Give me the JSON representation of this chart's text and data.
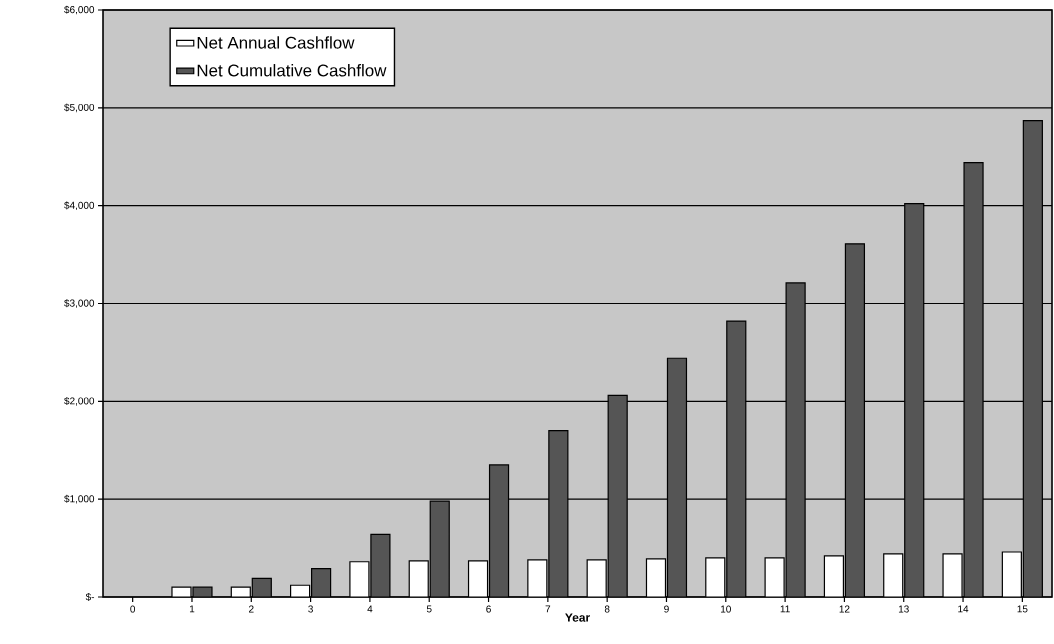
{
  "chart_data": {
    "type": "bar",
    "xlabel": "Year",
    "categories": [
      "0",
      "1",
      "2",
      "3",
      "4",
      "5",
      "6",
      "7",
      "8",
      "9",
      "10",
      "11",
      "12",
      "13",
      "14",
      "15"
    ],
    "series": [
      {
        "name": "Net Annual Cashflow",
        "color": "#ffffff",
        "values": [
          null,
          100,
          100,
          120,
          360,
          370,
          370,
          380,
          380,
          390,
          400,
          400,
          420,
          440,
          440,
          460
        ]
      },
      {
        "name": "Net Cumulative Cashflow",
        "color": "#555555",
        "values": [
          null,
          100,
          190,
          290,
          640,
          980,
          1350,
          1700,
          2060,
          2440,
          2820,
          3210,
          3610,
          4020,
          4440,
          4870
        ]
      }
    ],
    "ylim": [
      0,
      6000
    ],
    "yticks": [
      {
        "value": 0,
        "label": "$-"
      },
      {
        "value": 1000,
        "label": "$1,000"
      },
      {
        "value": 2000,
        "label": "$2,000"
      },
      {
        "value": 3000,
        "label": "$3,000"
      },
      {
        "value": 4000,
        "label": "$4,000"
      },
      {
        "value": 5000,
        "label": "$5,000"
      },
      {
        "value": 6000,
        "label": "$6,000"
      }
    ],
    "grid": "y",
    "legend": "top left"
  }
}
